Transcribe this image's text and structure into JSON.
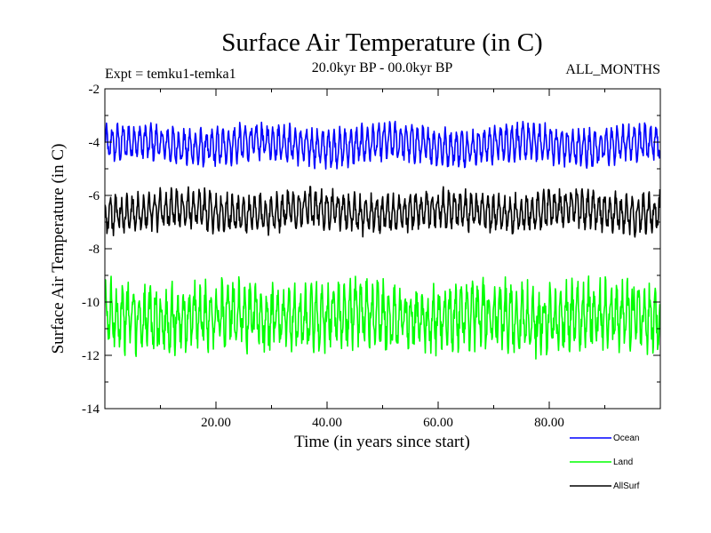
{
  "chart_data": {
    "type": "line",
    "title": "Surface Air Temperature (in C)",
    "subtitle": "20.0kyr BP - 00.0kyr BP",
    "expt_label": "Expt = temku1-temka1",
    "months_label": "ALL_MONTHS",
    "xlabel": "Time (in years since start)",
    "ylabel": "Surface Air Temperature (in C)",
    "xlim": [
      0,
      100
    ],
    "ylim": [
      -14,
      -2
    ],
    "xticks": [
      20,
      40,
      60,
      80
    ],
    "xtick_labels": [
      "20.00",
      "40.00",
      "60.00",
      "80.00"
    ],
    "yticks": [
      -14,
      -12,
      -10,
      -8,
      -6,
      -4,
      -2
    ],
    "ytick_labels": [
      "-14",
      "-12",
      "-10",
      "-8",
      "-6",
      "-4",
      "-2"
    ],
    "grid": false,
    "legend_position": "bottom-right, below plot",
    "series": [
      {
        "name": "Ocean",
        "color": "#0000ff",
        "mean": -4.1,
        "annual_amplitude": 0.55,
        "noise": 0.18,
        "min": -5.2,
        "max": -3.1,
        "x_start": 0.04,
        "x_step": 0.0833,
        "n_points": 1200
      },
      {
        "name": "Land",
        "color": "#00ff00",
        "mean": -10.55,
        "annual_amplitude": 0.85,
        "noise": 0.45,
        "min": -12.8,
        "max": -8.5,
        "x_start": 0.04,
        "x_step": 0.0833,
        "n_points": 1200
      },
      {
        "name": "AllSurf",
        "color": "#000000",
        "mean": -6.6,
        "annual_amplitude": 0.55,
        "noise": 0.22,
        "min": -7.8,
        "max": -5.4,
        "x_start": 0.04,
        "x_step": 0.0833,
        "n_points": 1200
      }
    ]
  }
}
